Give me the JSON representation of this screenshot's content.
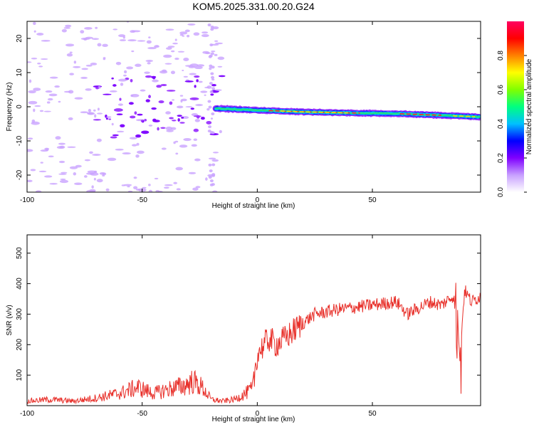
{
  "title": "KOM5.2025.331.00.20.G24",
  "chart_data": [
    {
      "type": "heatmap",
      "xlabel": "Height of straight line (km)",
      "ylabel": "Frequency (Hz)",
      "xlim": [
        -100,
        97
      ],
      "ylim": [
        -25,
        25
      ],
      "x_ticks": [
        "-100",
        "-50",
        "0",
        "50"
      ],
      "y_ticks": [
        "-20",
        "-10",
        "0",
        "10",
        "20"
      ],
      "colorbar": {
        "label": "Normalized spectral amplitude",
        "range": [
          0,
          1
        ],
        "ticks": [
          "0.0",
          "0.2",
          "0.4",
          "0.6",
          "0.8"
        ],
        "colors": [
          "#ffffff",
          "#c8a0ff",
          "#8000ff",
          "#0000ff",
          "#00c0ff",
          "#00ff80",
          "#80ff00",
          "#ffff00",
          "#ff8000",
          "#ff0000",
          "#ff0060"
        ]
      },
      "ridge": {
        "description": "frequency track of main signal",
        "points": [
          [
            -18,
            -0.5
          ],
          [
            0,
            -1.0
          ],
          [
            20,
            -1.5
          ],
          [
            40,
            -1.8
          ],
          [
            60,
            -2.0
          ],
          [
            80,
            -2.5
          ],
          [
            97,
            -3.0
          ]
        ]
      }
    },
    {
      "type": "line",
      "xlabel": "Height of straight line (km)",
      "ylabel": "SNR (v/v)",
      "xlim": [
        -100,
        97
      ],
      "ylim": [
        0,
        560
      ],
      "x_ticks": [
        "-100",
        "-50",
        "0",
        "50"
      ],
      "y_ticks": [
        "100",
        "200",
        "300",
        "400",
        "500"
      ],
      "color": "#e8302a",
      "series": [
        {
          "x": [
            -100,
            -90,
            -80,
            -70,
            -60,
            -52,
            -45,
            -38,
            -32,
            -28,
            -24,
            -20,
            -15,
            -10,
            -5,
            -2,
            0,
            2,
            5,
            8,
            12,
            18,
            25,
            35,
            45,
            55,
            60,
            62,
            65,
            70,
            75,
            80,
            85,
            87,
            88,
            90,
            93,
            97
          ],
          "y": [
            15,
            20,
            15,
            25,
            40,
            60,
            40,
            55,
            65,
            80,
            60,
            20,
            15,
            20,
            40,
            55,
            170,
            190,
            220,
            200,
            220,
            260,
            300,
            315,
            325,
            335,
            340,
            330,
            300,
            320,
            340,
            330,
            360,
            300,
            150,
            380,
            340,
            360
          ]
        }
      ]
    }
  ]
}
